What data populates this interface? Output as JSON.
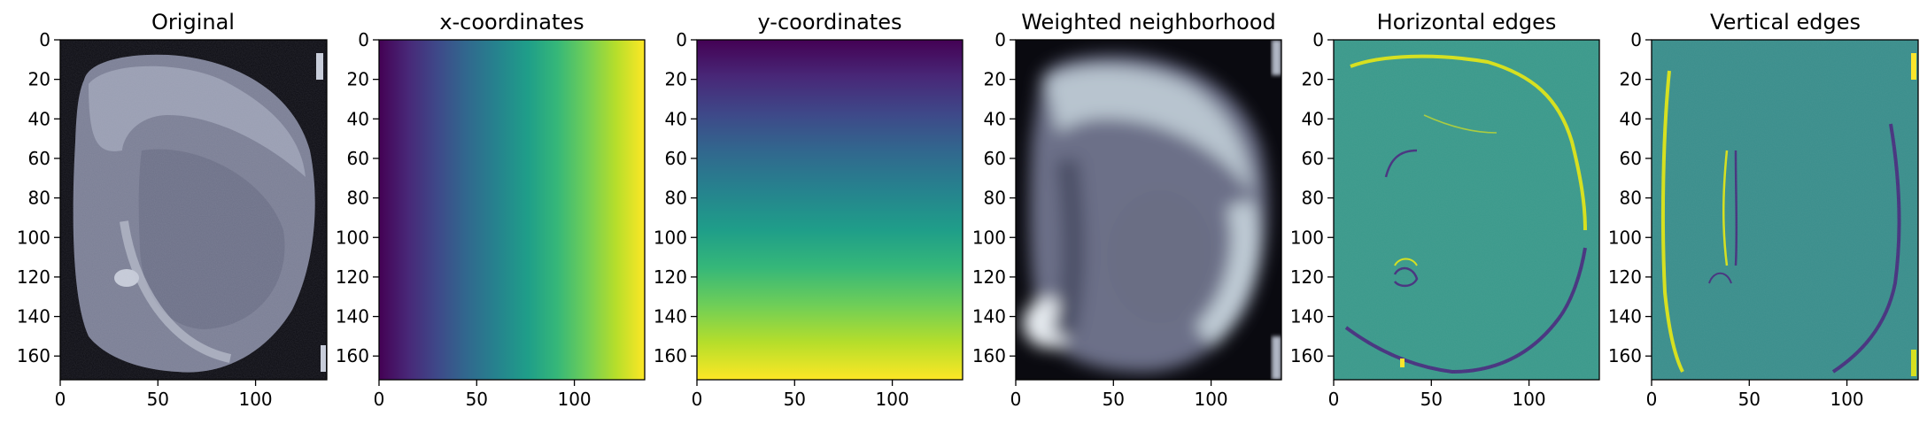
{
  "chart_data": [
    {
      "type": "heatmap",
      "title": "Original",
      "colormap": "bone",
      "content": "coronal brain tissue slice on black background",
      "image_width": 136,
      "image_height": 172,
      "xlim": [
        0,
        136
      ],
      "ylim": [
        172,
        0
      ],
      "xticks": [
        0,
        50,
        100
      ],
      "yticks": [
        0,
        20,
        40,
        60,
        80,
        100,
        120,
        140,
        160
      ]
    },
    {
      "type": "heatmap",
      "title": "x-coordinates",
      "colormap": "viridis",
      "content": "horizontal gradient, value increases left to right",
      "image_width": 136,
      "image_height": 172,
      "xlim": [
        0,
        136
      ],
      "ylim": [
        172,
        0
      ],
      "xticks": [
        0,
        50,
        100
      ],
      "yticks": [
        0,
        20,
        40,
        60,
        80,
        100,
        120,
        140,
        160
      ]
    },
    {
      "type": "heatmap",
      "title": "y-coordinates",
      "colormap": "viridis",
      "content": "vertical gradient, value increases top to bottom",
      "image_width": 136,
      "image_height": 172,
      "xlim": [
        0,
        136
      ],
      "ylim": [
        172,
        0
      ],
      "xticks": [
        0,
        50,
        100
      ],
      "yticks": [
        0,
        20,
        40,
        60,
        80,
        100,
        120,
        140,
        160
      ]
    },
    {
      "type": "heatmap",
      "title": "Weighted neighborhood",
      "colormap": "bone",
      "content": "blurred version of the tissue slice",
      "image_width": 136,
      "image_height": 172,
      "xlim": [
        0,
        136
      ],
      "ylim": [
        172,
        0
      ],
      "xticks": [
        0,
        50,
        100
      ],
      "yticks": [
        0,
        20,
        40,
        60,
        80,
        100,
        120,
        140,
        160
      ]
    },
    {
      "type": "heatmap",
      "title": "Horizontal edges",
      "colormap": "viridis",
      "content": "edge response along tissue outline",
      "image_width": 136,
      "image_height": 172,
      "xlim": [
        0,
        136
      ],
      "ylim": [
        172,
        0
      ],
      "xticks": [
        0,
        50,
        100
      ],
      "yticks": [
        0,
        20,
        40,
        60,
        80,
        100,
        120,
        140,
        160
      ]
    },
    {
      "type": "heatmap",
      "title": "Vertical edges",
      "colormap": "viridis",
      "content": "edge response along tissue outline",
      "image_width": 136,
      "image_height": 172,
      "xlim": [
        0,
        136
      ],
      "ylim": [
        172,
        0
      ],
      "xticks": [
        0,
        50,
        100
      ],
      "yticks": [
        0,
        20,
        40,
        60,
        80,
        100,
        120,
        140,
        160
      ]
    }
  ],
  "colors": {
    "viridis": [
      "#440154",
      "#482878",
      "#3e4989",
      "#31688e",
      "#26828e",
      "#1f9e89",
      "#35b779",
      "#6ece58",
      "#b5de2b",
      "#fde725"
    ],
    "edge_background": "#3a9a8b",
    "edge_positive": "#d8e219",
    "edge_negative": "#46327e",
    "bone_dark": "#0a0a10",
    "bone_mid": "#7b7f95",
    "bone_light": "#dfe6ec"
  }
}
